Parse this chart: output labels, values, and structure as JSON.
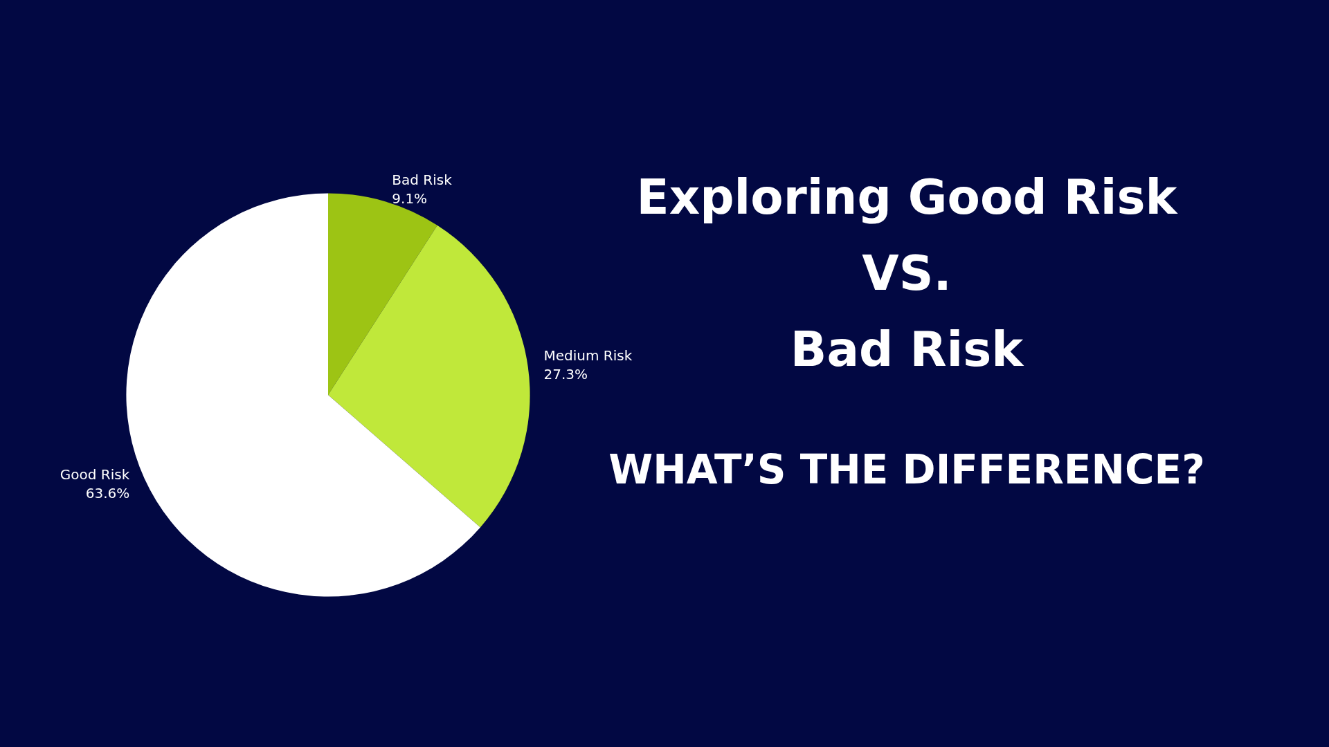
{
  "chart_data": {
    "type": "pie",
    "title": "Exploring Good Risk\nVS.\nBad Risk",
    "subtitle": "WHAT’S THE DIFFERENCE?",
    "categories": [
      "Bad Risk",
      "Medium Risk",
      "Good Risk"
    ],
    "values": [
      9.1,
      27.3,
      63.6
    ],
    "colors": [
      "#9dc414",
      "#c0e83a",
      "#ffffff"
    ],
    "value_labels": [
      "9.1%",
      "27.3%",
      "63.6%"
    ],
    "legend": false
  }
}
